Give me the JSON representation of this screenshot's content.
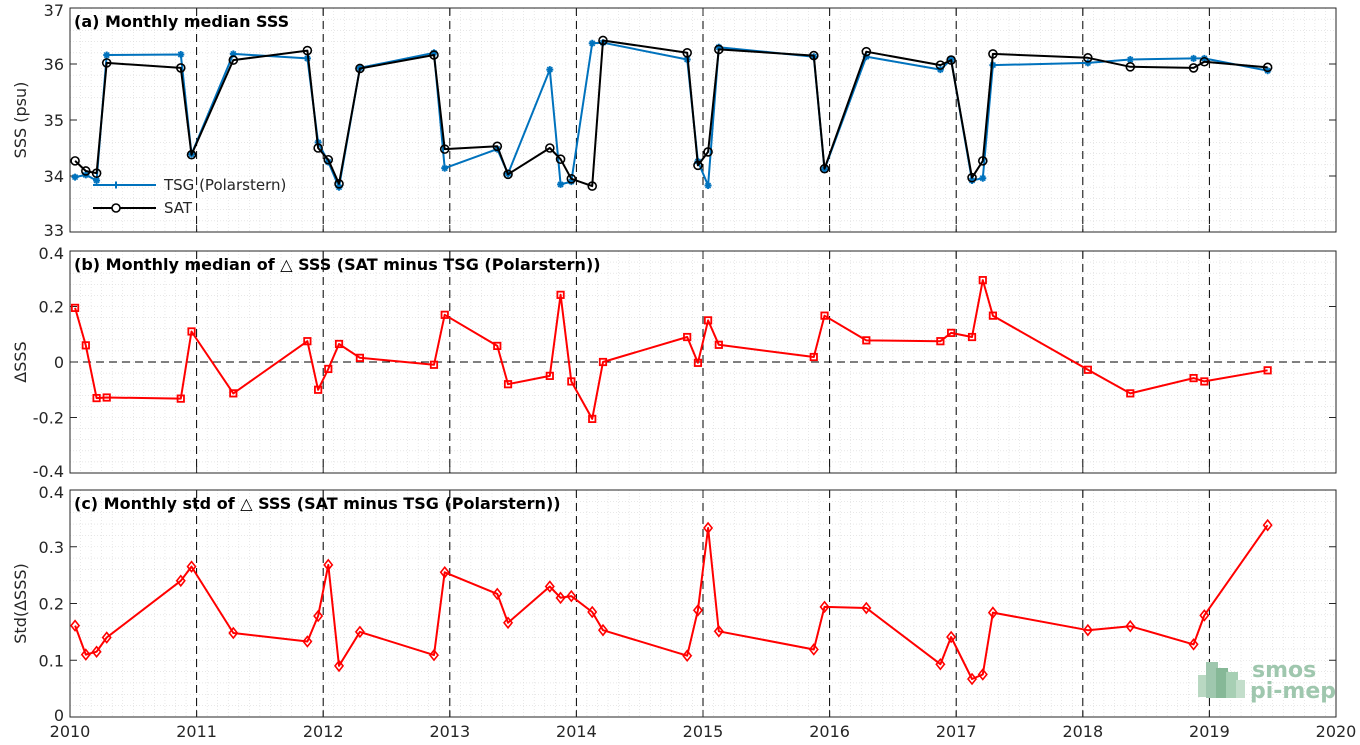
{
  "chart_data": [
    {
      "id": "a",
      "type": "line",
      "title": "(a) Monthly median SSS",
      "ylabel": "SSS (psu)",
      "xlim": [
        2010,
        2020
      ],
      "ylim": [
        33,
        37
      ],
      "yticks": [
        33,
        34,
        35,
        36,
        37
      ],
      "grid": true,
      "legend_position": "lower-left",
      "series": [
        {
          "name": "TSG (Polarstern)",
          "color": "#0072BD",
          "marker": "asterisk",
          "x": [
            2010.04,
            2010.125,
            2010.21,
            2010.29,
            2010.875,
            2010.96,
            2011.29,
            2011.875,
            2011.96,
            2012.04,
            2012.125,
            2012.29,
            2012.875,
            2012.96,
            2013.375,
            2013.46,
            2013.79,
            2013.875,
            2013.96,
            2014.125,
            2014.21,
            2014.875,
            2014.96,
            2015.04,
            2015.125,
            2015.875,
            2015.96,
            2016.29,
            2016.875,
            2016.96,
            2017.125,
            2017.21,
            2017.29,
            2018.04,
            2018.375,
            2018.875,
            2018.96,
            2019.46
          ],
          "y": [
            33.98,
            34.02,
            33.92,
            36.16,
            36.17,
            34.39,
            36.18,
            36.1,
            34.6,
            34.25,
            33.8,
            35.93,
            36.2,
            34.14,
            34.48,
            34.04,
            35.9,
            33.85,
            33.9,
            36.37,
            36.38,
            36.08,
            34.26,
            33.83,
            36.3,
            36.13,
            34.12,
            36.13,
            35.9,
            36.08,
            33.92,
            33.96,
            35.98,
            36.02,
            36.08,
            36.1,
            36.1,
            35.88
          ]
        },
        {
          "name": "SAT",
          "color": "#000000",
          "marker": "circle",
          "x": [
            2010.04,
            2010.125,
            2010.21,
            2010.29,
            2010.875,
            2010.96,
            2011.29,
            2011.875,
            2011.96,
            2012.04,
            2012.125,
            2012.29,
            2012.875,
            2012.96,
            2013.375,
            2013.46,
            2013.79,
            2013.875,
            2013.96,
            2014.125,
            2014.21,
            2014.875,
            2014.96,
            2015.04,
            2015.125,
            2015.875,
            2015.96,
            2016.29,
            2016.875,
            2016.96,
            2017.125,
            2017.21,
            2017.29,
            2018.04,
            2018.375,
            2018.875,
            2018.96,
            2019.46
          ],
          "y": [
            34.27,
            34.09,
            34.05,
            36.02,
            35.93,
            34.38,
            36.07,
            36.24,
            34.5,
            34.29,
            33.86,
            35.92,
            36.16,
            34.48,
            34.53,
            34.03,
            34.5,
            34.3,
            33.95,
            33.82,
            36.42,
            36.2,
            34.19,
            34.43,
            36.26,
            36.15,
            34.13,
            36.22,
            35.98,
            36.07,
            33.97,
            34.27,
            36.18,
            36.11,
            35.95,
            35.93,
            36.04,
            35.94
          ]
        }
      ],
      "dashed_year_lines": [
        2011,
        2012,
        2013,
        2014,
        2015,
        2016,
        2017,
        2018,
        2019
      ]
    },
    {
      "id": "b",
      "type": "line",
      "title": "(b) Monthly median of △ SSS (SAT minus TSG (Polarstern))",
      "ylabel": "ΔSSS",
      "xlim": [
        2010,
        2020
      ],
      "ylim": [
        -0.4,
        0.4
      ],
      "yticks": [
        -0.4,
        -0.2,
        0,
        0.2,
        0.4
      ],
      "ytick_labels": [
        "-0.4",
        "-0.2",
        "0",
        "0.2",
        "0.4"
      ],
      "grid": true,
      "zero_line": true,
      "series": [
        {
          "color": "#FF0000",
          "marker": "square",
          "x": [
            2010.04,
            2010.125,
            2010.21,
            2010.29,
            2010.875,
            2010.96,
            2011.29,
            2011.875,
            2011.96,
            2012.04,
            2012.125,
            2012.29,
            2012.875,
            2012.96,
            2013.375,
            2013.46,
            2013.79,
            2013.875,
            2013.96,
            2014.125,
            2014.21,
            2014.875,
            2014.96,
            2015.04,
            2015.125,
            2015.875,
            2015.96,
            2016.29,
            2016.875,
            2016.96,
            2017.125,
            2017.21,
            2017.29,
            2018.04,
            2018.375,
            2018.875,
            2018.96,
            2019.46
          ],
          "y": [
            0.195,
            0.06,
            -0.13,
            -0.128,
            -0.132,
            0.11,
            -0.113,
            0.075,
            -0.1,
            -0.025,
            0.065,
            0.015,
            -0.01,
            0.17,
            0.058,
            -0.08,
            -0.05,
            0.242,
            -0.07,
            -0.205,
            0.0,
            0.09,
            -0.003,
            0.15,
            0.062,
            0.018,
            0.167,
            0.078,
            0.075,
            0.105,
            0.09,
            0.295,
            0.167,
            -0.028,
            -0.113,
            -0.058,
            -0.07,
            -0.03
          ]
        }
      ],
      "dashed_year_lines": [
        2011,
        2012,
        2013,
        2014,
        2015,
        2016,
        2017,
        2018,
        2019
      ]
    },
    {
      "id": "c",
      "type": "line",
      "title": "(c) Monthly std of △ SSS (SAT minus TSG (Polarstern))",
      "ylabel": "Std(ΔSSS)",
      "xlim": [
        2010,
        2020
      ],
      "ylim": [
        0,
        0.4
      ],
      "yticks": [
        0,
        0.1,
        0.2,
        0.3,
        0.4
      ],
      "ytick_labels": [
        "0",
        "0.1",
        "0.2",
        "0.3",
        "0.4"
      ],
      "xticks": [
        2010,
        2011,
        2012,
        2013,
        2014,
        2015,
        2016,
        2017,
        2018,
        2019,
        2020
      ],
      "grid": true,
      "series": [
        {
          "color": "#FF0000",
          "marker": "diamond",
          "x": [
            2010.04,
            2010.125,
            2010.21,
            2010.29,
            2010.875,
            2010.96,
            2011.29,
            2011.875,
            2011.96,
            2012.04,
            2012.125,
            2012.29,
            2012.875,
            2012.96,
            2013.375,
            2013.46,
            2013.79,
            2013.875,
            2013.96,
            2014.125,
            2014.21,
            2014.875,
            2014.96,
            2015.04,
            2015.125,
            2015.875,
            2015.96,
            2016.29,
            2016.875,
            2016.96,
            2017.125,
            2017.21,
            2017.29,
            2018.04,
            2018.375,
            2018.875,
            2018.96,
            2019.46
          ],
          "y": [
            0.161,
            0.11,
            0.115,
            0.14,
            0.24,
            0.265,
            0.148,
            0.133,
            0.178,
            0.268,
            0.09,
            0.15,
            0.109,
            0.255,
            0.217,
            0.166,
            0.23,
            0.21,
            0.213,
            0.185,
            0.153,
            0.108,
            0.188,
            0.333,
            0.151,
            0.119,
            0.194,
            0.192,
            0.093,
            0.141,
            0.067,
            0.075,
            0.184,
            0.153,
            0.16,
            0.128,
            0.179,
            0.338
          ]
        }
      ],
      "dashed_year_lines": [
        2011,
        2012,
        2013,
        2014,
        2015,
        2016,
        2017,
        2018,
        2019
      ]
    }
  ],
  "logo": {
    "line1": "smos",
    "line2": "pi-mep",
    "color": "#9fc7ae"
  }
}
